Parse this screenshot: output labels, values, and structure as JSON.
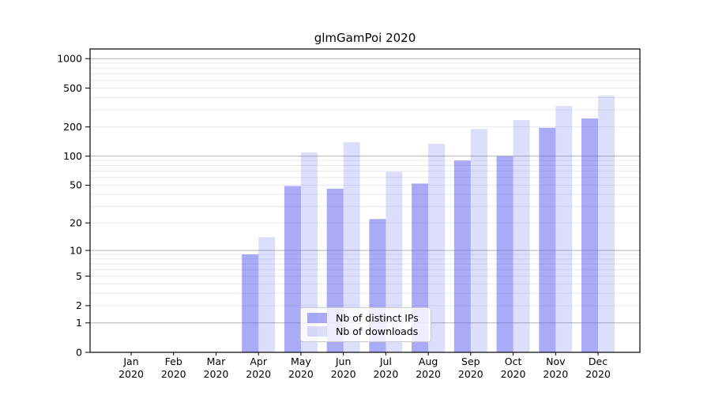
{
  "chart_data": {
    "type": "bar",
    "title": "glmGamPoi 2020",
    "xlabel": "",
    "ylabel": "",
    "y_scale": "log10(value+1)",
    "y_ticks": [
      0,
      1,
      2,
      5,
      10,
      20,
      50,
      100,
      200,
      500,
      1000
    ],
    "ylim": [
      0,
      1255
    ],
    "grid": {
      "horizontal": true,
      "major_at": [
        1,
        10,
        100,
        1000
      ],
      "major_color": "#b4b4b4",
      "minor_color": "#eaeaea"
    },
    "legend_position": "lower center",
    "categories": [
      {
        "month": "Jan",
        "year": "2020"
      },
      {
        "month": "Feb",
        "year": "2020"
      },
      {
        "month": "Mar",
        "year": "2020"
      },
      {
        "month": "Apr",
        "year": "2020"
      },
      {
        "month": "May",
        "year": "2020"
      },
      {
        "month": "Jun",
        "year": "2020"
      },
      {
        "month": "Jul",
        "year": "2020"
      },
      {
        "month": "Aug",
        "year": "2020"
      },
      {
        "month": "Sep",
        "year": "2020"
      },
      {
        "month": "Oct",
        "year": "2020"
      },
      {
        "month": "Nov",
        "year": "2020"
      },
      {
        "month": "Dec",
        "year": "2020"
      }
    ],
    "series": [
      {
        "name": "Nb of distinct IPs",
        "color": "rgba(85,85,240,0.5)",
        "color_solid": "#aaaaf7",
        "values": [
          0,
          0,
          0,
          9,
          49,
          46,
          22,
          52,
          90,
          100,
          196,
          244
        ]
      },
      {
        "name": "Nb of downloads",
        "color": "rgba(85,85,240,0.2)",
        "color_solid": "#ddddfc",
        "values": [
          0,
          0,
          0,
          14,
          109,
          139,
          69,
          134,
          190,
          235,
          328,
          419
        ]
      }
    ],
    "frame_color": "#000000",
    "text_color": "#000000"
  }
}
